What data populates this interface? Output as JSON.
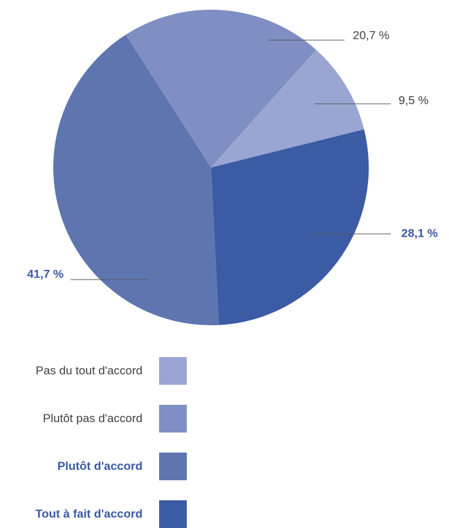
{
  "chart_data": {
    "type": "pie",
    "slices": [
      {
        "category": "Tout à fait d'accord",
        "value": 28.1,
        "label": "28,1 %",
        "color": "#3b5ba5",
        "bold": true
      },
      {
        "category": "Plutôt d'accord",
        "value": 41.7,
        "label": "41,7 %",
        "color": "#5f75b0",
        "bold": true
      },
      {
        "category": "Plutôt pas d'accord",
        "value": 20.7,
        "label": "20,7 %",
        "color": "#7f8fc3",
        "bold": false
      },
      {
        "category": "Pas du tout d'accord",
        "value": 9.5,
        "label": "9,5 %",
        "color": "#9aa6d1",
        "bold": false
      }
    ],
    "legend": {
      "placement": "bottom-left",
      "order": [
        "Pas du tout d'accord",
        "Plutôt pas d'accord",
        "Plutôt d'accord",
        "Tout à fait d'accord"
      ]
    },
    "title": "",
    "label_colors": {
      "normal": "#404040",
      "bold": "#3b5aa3"
    }
  }
}
